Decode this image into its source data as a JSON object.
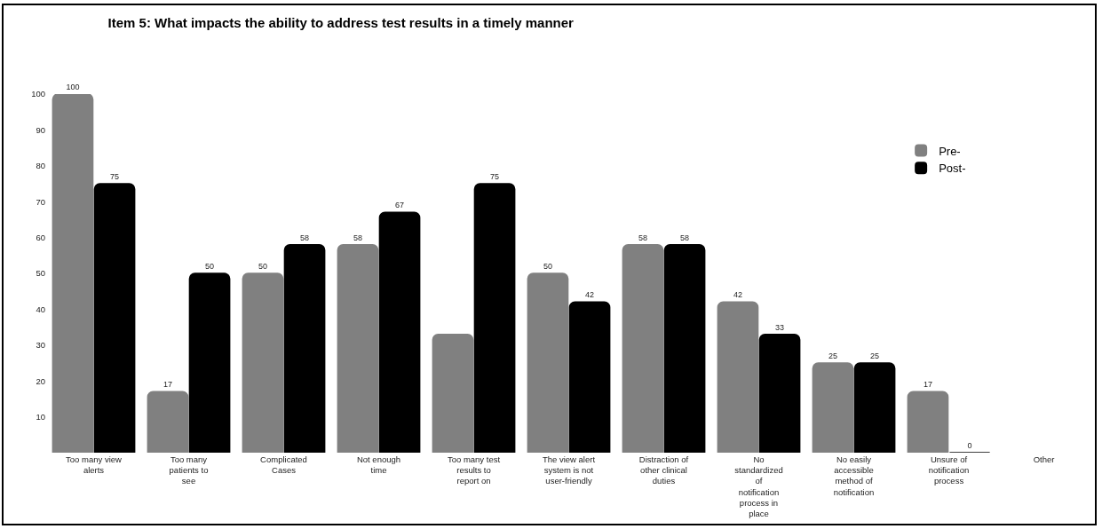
{
  "chart_data": {
    "type": "bar",
    "title": "Item 5: What impacts the ability to address test results in a timely manner",
    "categories": [
      "Too many view alerts",
      "Too many patients to see",
      "Complicated Cases",
      "Not enough time",
      "Too many test results to report on",
      "The view alert system is not user-friendly",
      "Distraction of other clinical duties",
      "No standardized of notification process in place",
      "No easily accessible method of notification",
      "Unsure of notification process",
      "Other"
    ],
    "series": [
      {
        "name": "Pre-",
        "color": "#808080",
        "values": [
          100,
          17,
          50,
          58,
          33,
          50,
          58,
          42,
          25,
          17,
          null
        ],
        "value_labels": [
          "100",
          "17",
          "50",
          "58",
          null,
          "50",
          "58",
          "42",
          "25",
          "17",
          null
        ]
      },
      {
        "name": "Post-",
        "color": "#000000",
        "values": [
          75,
          50,
          58,
          67,
          75,
          42,
          58,
          33,
          25,
          0,
          null
        ],
        "value_labels": [
          "75",
          "50",
          "58",
          "67",
          "75",
          "42",
          "58",
          "33",
          "25",
          "0",
          null
        ]
      }
    ],
    "ylim": [
      0,
      100
    ],
    "yticks": [
      10,
      20,
      30,
      40,
      50,
      60,
      70,
      80,
      90,
      100
    ],
    "legend": "top right"
  }
}
